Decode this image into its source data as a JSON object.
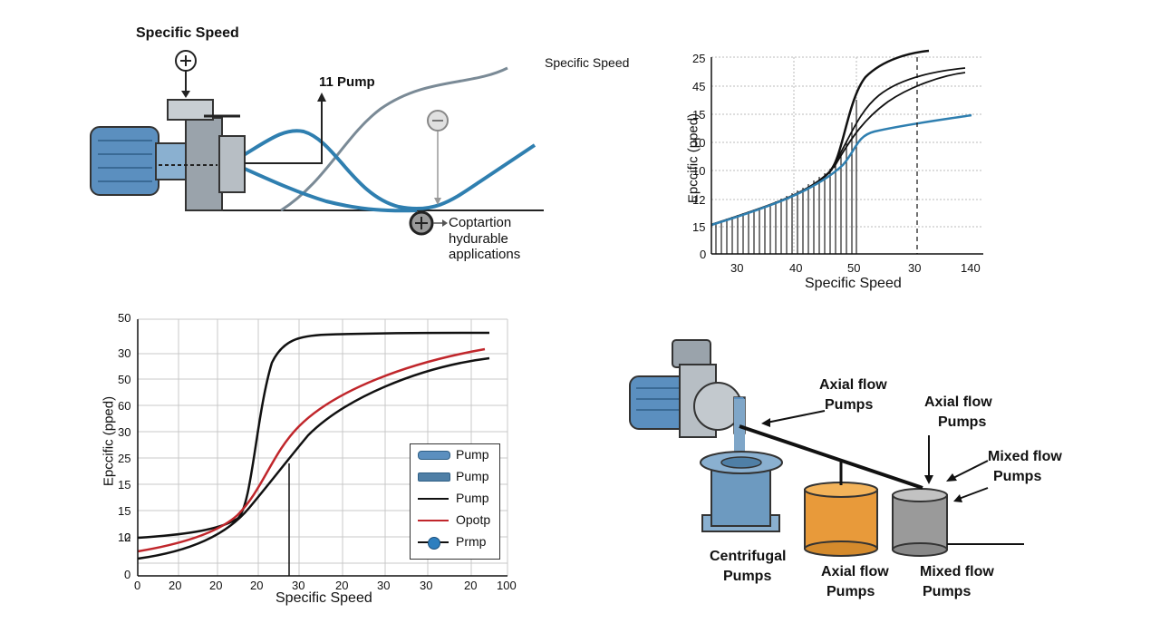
{
  "top_left": {
    "title": "Specific Speed",
    "pump_label": "11 Pump",
    "right_label": "Specific Speed",
    "bottom_label_lines": [
      "Coptartion",
      "hydurable",
      "applications"
    ]
  },
  "top_right": {
    "xlabel": "Specific Speed",
    "ylabel": "Epccific (pped)",
    "y_ticks": [
      "25",
      "45",
      "15",
      "10",
      "10",
      "12",
      "15",
      "0"
    ],
    "x_ticks": [
      "30",
      "40",
      "50",
      "30",
      "140"
    ]
  },
  "bottom_left": {
    "xlabel": "Specific Speed",
    "ylabel": "Epccific (pped)",
    "y_ticks": [
      "50",
      "30",
      "50",
      "60",
      "30",
      "25",
      "15",
      "15",
      "12",
      "0",
      "0"
    ],
    "x_ticks": [
      "0",
      "20",
      "20",
      "20",
      "30",
      "20",
      "30",
      "30",
      "20",
      "100"
    ],
    "legend": [
      {
        "label": "Pump",
        "style": "bar-light",
        "color": "#5b8fbf"
      },
      {
        "label": "Pump",
        "style": "bar-dark",
        "color": "#4f7fa6"
      },
      {
        "label": "Pump",
        "style": "line",
        "color": "#111111"
      },
      {
        "label": "Opotp",
        "style": "line",
        "color": "#c0262b"
      },
      {
        "label": "Prmp",
        "style": "dot-line",
        "color": "#2d7fbf"
      }
    ]
  },
  "bottom_right": {
    "labels": {
      "axial_a": [
        "Axial flow",
        "Pumps"
      ],
      "axial_b": [
        "Axial flow",
        "Pumps"
      ],
      "mixed_top": [
        "Mixed flow",
        "Pumps"
      ],
      "centrifugal": [
        "Centrifugal",
        "Pumps"
      ],
      "axial_bottom": [
        "Axial flow",
        "Pumps"
      ],
      "mixed_bottom": [
        "Mixed flow",
        "Pumps"
      ]
    }
  },
  "colors": {
    "pump_blue": "#5b8fbf",
    "curve_blue": "#2f7fb0",
    "curve_red": "#c0262b",
    "orange_tank": "#e89a3a",
    "grey_tank": "#9a9a9a"
  }
}
